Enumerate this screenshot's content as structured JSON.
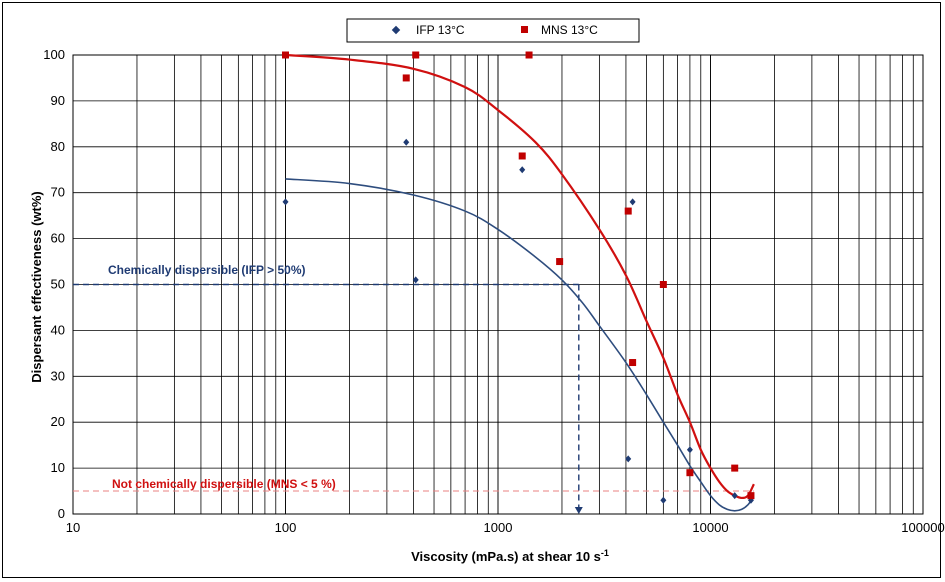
{
  "chart_data": {
    "type": "scatter",
    "title": "",
    "xlabel": "Viscosity (mPa.s) at shear 10 s",
    "xlabel_superscript": "-1",
    "ylabel": "Dispersant effectiveness (wt%)",
    "x_scale": "log",
    "xlim": [
      10,
      100000
    ],
    "ylim": [
      0,
      100
    ],
    "x_ticks": [
      "10",
      "100",
      "1000",
      "10000",
      "100000"
    ],
    "y_ticks": [
      "0",
      "10",
      "20",
      "30",
      "40",
      "50",
      "60",
      "70",
      "80",
      "90",
      "100"
    ],
    "grid": true,
    "legend_position": "top-center",
    "series": [
      {
        "name": "IFP 13°C",
        "marker": "diamond",
        "color": "#1f3b73",
        "x": [
          100,
          370,
          410,
          1300,
          4100,
          4300,
          6000,
          8000,
          13000,
          15500
        ],
        "y": [
          68,
          81,
          51,
          75,
          12,
          68,
          3,
          14,
          4,
          3
        ],
        "fit_curve": {
          "color": "#2e4d7e",
          "x": [
            100,
            200,
            400,
            700,
            1000,
            1500,
            2000,
            2500,
            3000,
            4000,
            5000,
            6000,
            7000,
            8000,
            9000,
            10000,
            11000,
            12000,
            13000,
            14000,
            15000,
            15800
          ],
          "y": [
            73,
            72,
            69.5,
            66,
            62,
            56,
            51,
            46,
            41,
            33,
            26,
            20,
            15,
            10.5,
            7,
            4,
            2,
            1,
            0.7,
            1,
            2,
            3.5
          ]
        }
      },
      {
        "name": "MNS 13°C",
        "marker": "square",
        "color": "#c00000",
        "x": [
          100,
          370,
          410,
          1300,
          1400,
          1950,
          4100,
          4300,
          6000,
          8000,
          13000,
          15500
        ],
        "y": [
          100,
          95,
          100,
          78,
          100,
          55,
          66,
          33,
          50,
          9,
          10,
          4
        ],
        "fit_curve": {
          "color": "#d01010",
          "x": [
            100,
            200,
            400,
            700,
            1000,
            1500,
            2000,
            3000,
            4000,
            5000,
            6000,
            7000,
            8000,
            9000,
            10000,
            11000,
            12000,
            13000,
            14000,
            15000,
            16000
          ],
          "y": [
            100,
            99,
            97,
            93,
            88,
            81,
            74,
            62,
            52,
            42,
            34,
            26,
            20,
            14,
            10,
            7,
            5,
            4,
            3.5,
            4,
            6.5
          ]
        }
      }
    ],
    "annotations": [
      {
        "text": "Chemically dispersible (IFP > 50%)",
        "color": "#1f3b73",
        "line_y": 50,
        "line_x_end": 2400,
        "line_color": "#1f3b73",
        "line_style": "dashed"
      },
      {
        "text": "Not chemically dispersible  (MNS < 5 %)",
        "color": "#d01010",
        "line_y": 5,
        "line_x_end": 16000,
        "line_color": "#e88080",
        "line_style": "dashed"
      }
    ],
    "vertical_marker": {
      "x": 2400,
      "y_from": 50,
      "y_to": 0,
      "color": "#1f3b73",
      "line_style": "dashed"
    }
  }
}
